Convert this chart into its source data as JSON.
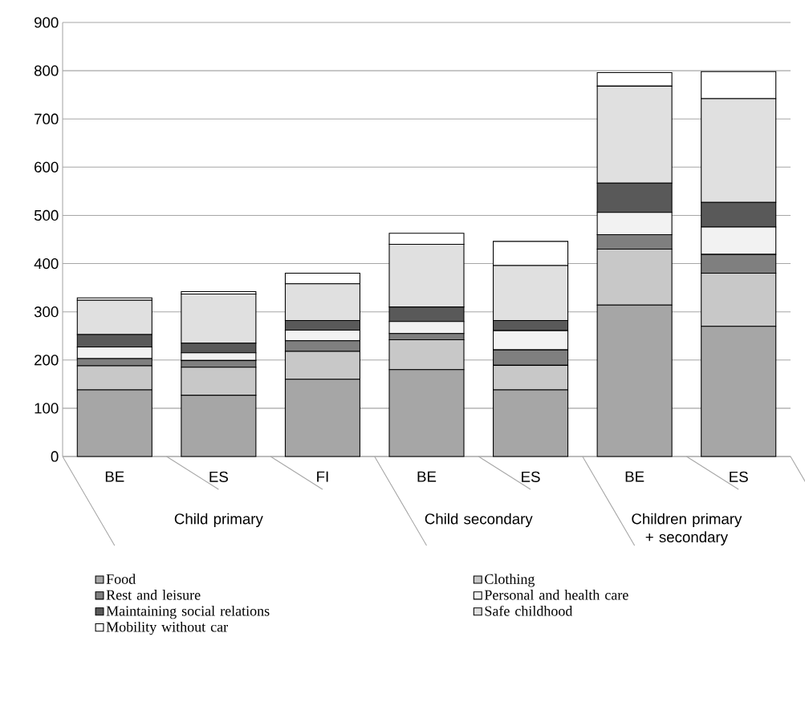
{
  "chart_data": {
    "type": "bar",
    "stacked": true,
    "categories": [
      "BE",
      "ES",
      "FI",
      "BE",
      "ES",
      "BE",
      "ES"
    ],
    "series": [
      {
        "name": "Food",
        "color": "#a6a6a6",
        "values": [
          138,
          127,
          160,
          180,
          138,
          314,
          270
        ]
      },
      {
        "name": "Clothing",
        "color": "#c8c8c8",
        "values": [
          50,
          58,
          58,
          62,
          51,
          116,
          110
        ]
      },
      {
        "name": "Rest and leisure",
        "color": "#7f7f7f",
        "values": [
          15,
          14,
          22,
          13,
          32,
          30,
          39
        ]
      },
      {
        "name": "Personal and health care",
        "color": "#f2f2f2",
        "values": [
          24,
          16,
          22,
          25,
          40,
          46,
          57
        ]
      },
      {
        "name": "Maintaining social relations",
        "color": "#595959",
        "values": [
          26,
          20,
          20,
          30,
          21,
          61,
          51
        ]
      },
      {
        "name": "Safe childhood",
        "color": "#e0e0e0",
        "values": [
          71,
          102,
          76,
          130,
          114,
          201,
          215
        ]
      },
      {
        "name": "Mobility without car",
        "color": "#ffffff",
        "values": [
          5,
          5,
          22,
          23,
          50,
          28,
          56
        ]
      }
    ],
    "ylim": [
      0,
      900
    ],
    "yticks": [
      0,
      100,
      200,
      300,
      400,
      500,
      600,
      700,
      800,
      900
    ],
    "grid": "y",
    "legend": "bottom",
    "annotations": [
      "Child primary",
      "Child secondary",
      "Children  primary + secondary"
    ]
  }
}
